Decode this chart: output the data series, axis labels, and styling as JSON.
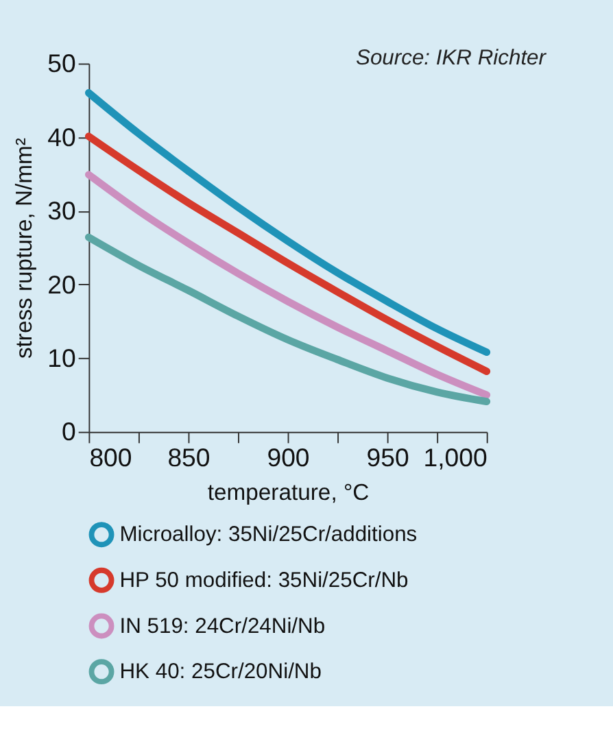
{
  "chart_data": {
    "type": "line",
    "xlabel": "temperature, °C",
    "ylabel": "stress rupture, N/mm²",
    "annotations": [
      "Source: IKR Richter"
    ],
    "x": [
      800,
      825,
      850,
      875,
      900,
      925,
      950,
      975,
      1000
    ],
    "series": [
      {
        "name": "Microalloy: 35Ni/25Cr/additions",
        "color": "#1f93b8",
        "values": [
          46.0,
          40.5,
          35.4,
          30.5,
          25.9,
          21.6,
          17.7,
          14.0,
          10.8
        ]
      },
      {
        "name": "HP 50 modified: 35Ni/25Cr/Nb",
        "color": "#d63a2c",
        "values": [
          40.1,
          35.5,
          31.1,
          27.0,
          22.9,
          19.0,
          15.2,
          11.6,
          8.2
        ]
      },
      {
        "name": "IN 519: 24Cr/24Ni/Nb",
        "color": "#cc8fbf",
        "values": [
          34.9,
          30.0,
          25.6,
          21.5,
          17.7,
          14.2,
          11.0,
          7.8,
          5.0
        ]
      },
      {
        "name": "HK 40: 25Cr/20Ni/Nb",
        "color": "#5ba6a4",
        "values": [
          26.4,
          22.6,
          19.2,
          15.7,
          12.5,
          9.8,
          7.3,
          5.4,
          4.1
        ]
      }
    ],
    "xlim": [
      800,
      1000
    ],
    "xticks": [
      800,
      {
        "value": 825,
        "label": null
      },
      850,
      {
        "value": 875,
        "label": null
      },
      900,
      {
        "value": 925,
        "label": null
      },
      950,
      {
        "value": 975,
        "label": null
      },
      {
        "value": 1000,
        "label": "1,000"
      }
    ],
    "ylim": [
      0,
      50
    ],
    "yticks": [
      0,
      10,
      20,
      30,
      40,
      50
    ],
    "grid": false,
    "legend": "bottom",
    "marker": "none",
    "line_style": "solid"
  }
}
